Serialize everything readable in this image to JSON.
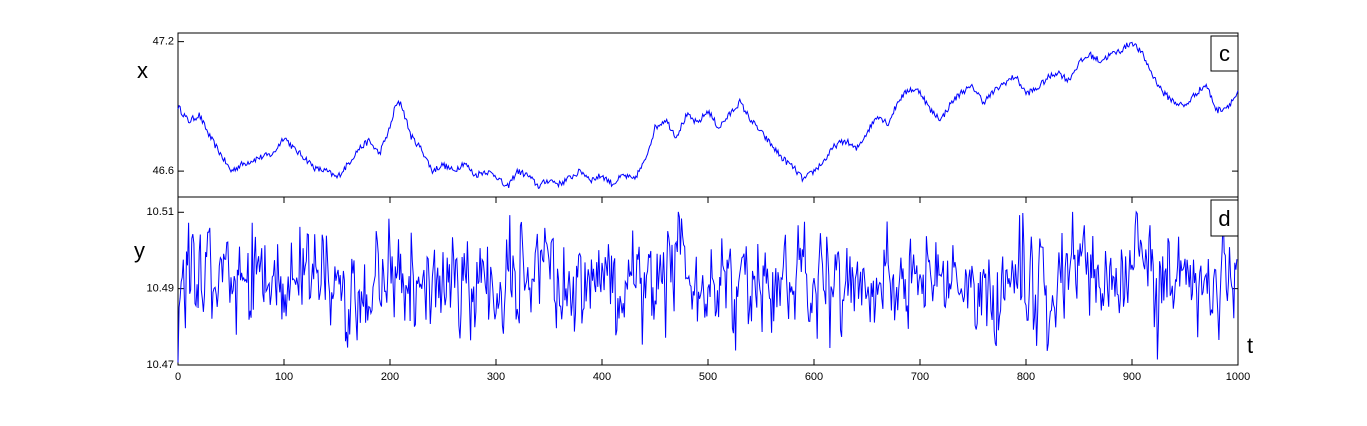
{
  "chart_data": [
    {
      "type": "line",
      "panel_label": "c",
      "ylabel": "x",
      "xlim": [
        0,
        1000
      ],
      "ylim": [
        46.48,
        47.24
      ],
      "y_ticks": [
        46.6,
        47.2
      ],
      "y_tick_labels": [
        "46.6",
        "47.2"
      ],
      "show_x_tick_labels": false,
      "series": [
        {
          "color": "#0000ff",
          "x": [
            0,
            10,
            20,
            30,
            40,
            50,
            60,
            75,
            90,
            100,
            110,
            120,
            130,
            140,
            150,
            160,
            170,
            180,
            190,
            200,
            205,
            210,
            215,
            220,
            230,
            240,
            250,
            260,
            270,
            280,
            290,
            300,
            310,
            320,
            330,
            340,
            350,
            360,
            370,
            380,
            390,
            400,
            410,
            420,
            430,
            440,
            450,
            460,
            470,
            480,
            490,
            500,
            510,
            520,
            530,
            540,
            550,
            560,
            570,
            580,
            590,
            600,
            610,
            620,
            630,
            640,
            650,
            660,
            670,
            680,
            690,
            700,
            710,
            720,
            730,
            740,
            750,
            760,
            770,
            780,
            790,
            800,
            810,
            820,
            830,
            840,
            850,
            860,
            870,
            880,
            890,
            900,
            910,
            920,
            930,
            940,
            950,
            960,
            970,
            980,
            990,
            1000
          ],
          "values": [
            46.9,
            46.83,
            46.86,
            46.76,
            46.68,
            46.6,
            46.63,
            46.66,
            46.68,
            46.76,
            46.7,
            46.66,
            46.61,
            46.6,
            46.57,
            46.63,
            46.7,
            46.74,
            46.68,
            46.8,
            46.9,
            46.92,
            46.84,
            46.76,
            46.7,
            46.6,
            46.63,
            46.6,
            46.64,
            46.58,
            46.6,
            46.58,
            46.52,
            46.6,
            46.58,
            46.53,
            46.56,
            46.54,
            46.57,
            46.6,
            46.56,
            46.58,
            46.54,
            46.58,
            46.56,
            46.64,
            46.8,
            46.84,
            46.76,
            46.86,
            46.82,
            46.88,
            46.8,
            46.86,
            46.92,
            46.84,
            46.78,
            46.72,
            46.66,
            46.62,
            46.56,
            46.6,
            46.65,
            46.72,
            46.74,
            46.7,
            46.78,
            46.86,
            46.82,
            46.93,
            46.98,
            46.97,
            46.88,
            46.84,
            46.92,
            46.97,
            46.99,
            46.92,
            46.97,
            47.01,
            47.04,
            46.96,
            46.98,
            47.03,
            47.06,
            47.02,
            47.1,
            47.14,
            47.11,
            47.14,
            47.16,
            47.2,
            47.14,
            47.04,
            46.96,
            46.92,
            46.9,
            46.96,
            47.0,
            46.88,
            46.9,
            46.96
          ]
        }
      ]
    },
    {
      "type": "line",
      "panel_label": "d",
      "ylabel": "y",
      "xlabel": "t",
      "xlim": [
        0,
        1000
      ],
      "ylim": [
        10.47,
        10.514
      ],
      "y_ticks": [
        10.47,
        10.49,
        10.51
      ],
      "y_tick_labels": [
        "10.47",
        "10.49",
        "10.51"
      ],
      "x_ticks": [
        0,
        100,
        200,
        300,
        400,
        500,
        600,
        700,
        800,
        900,
        1000
      ],
      "x_tick_labels": [
        "0",
        "100",
        "200",
        "300",
        "400",
        "500",
        "600",
        "700",
        "800",
        "900",
        "1000"
      ],
      "noise": {
        "count": 1000,
        "mean": 10.492,
        "std": 0.0065,
        "min": 10.4705,
        "max": 10.5101,
        "seed": 7
      },
      "series": [
        {
          "color": "#0000ff"
        }
      ]
    }
  ]
}
